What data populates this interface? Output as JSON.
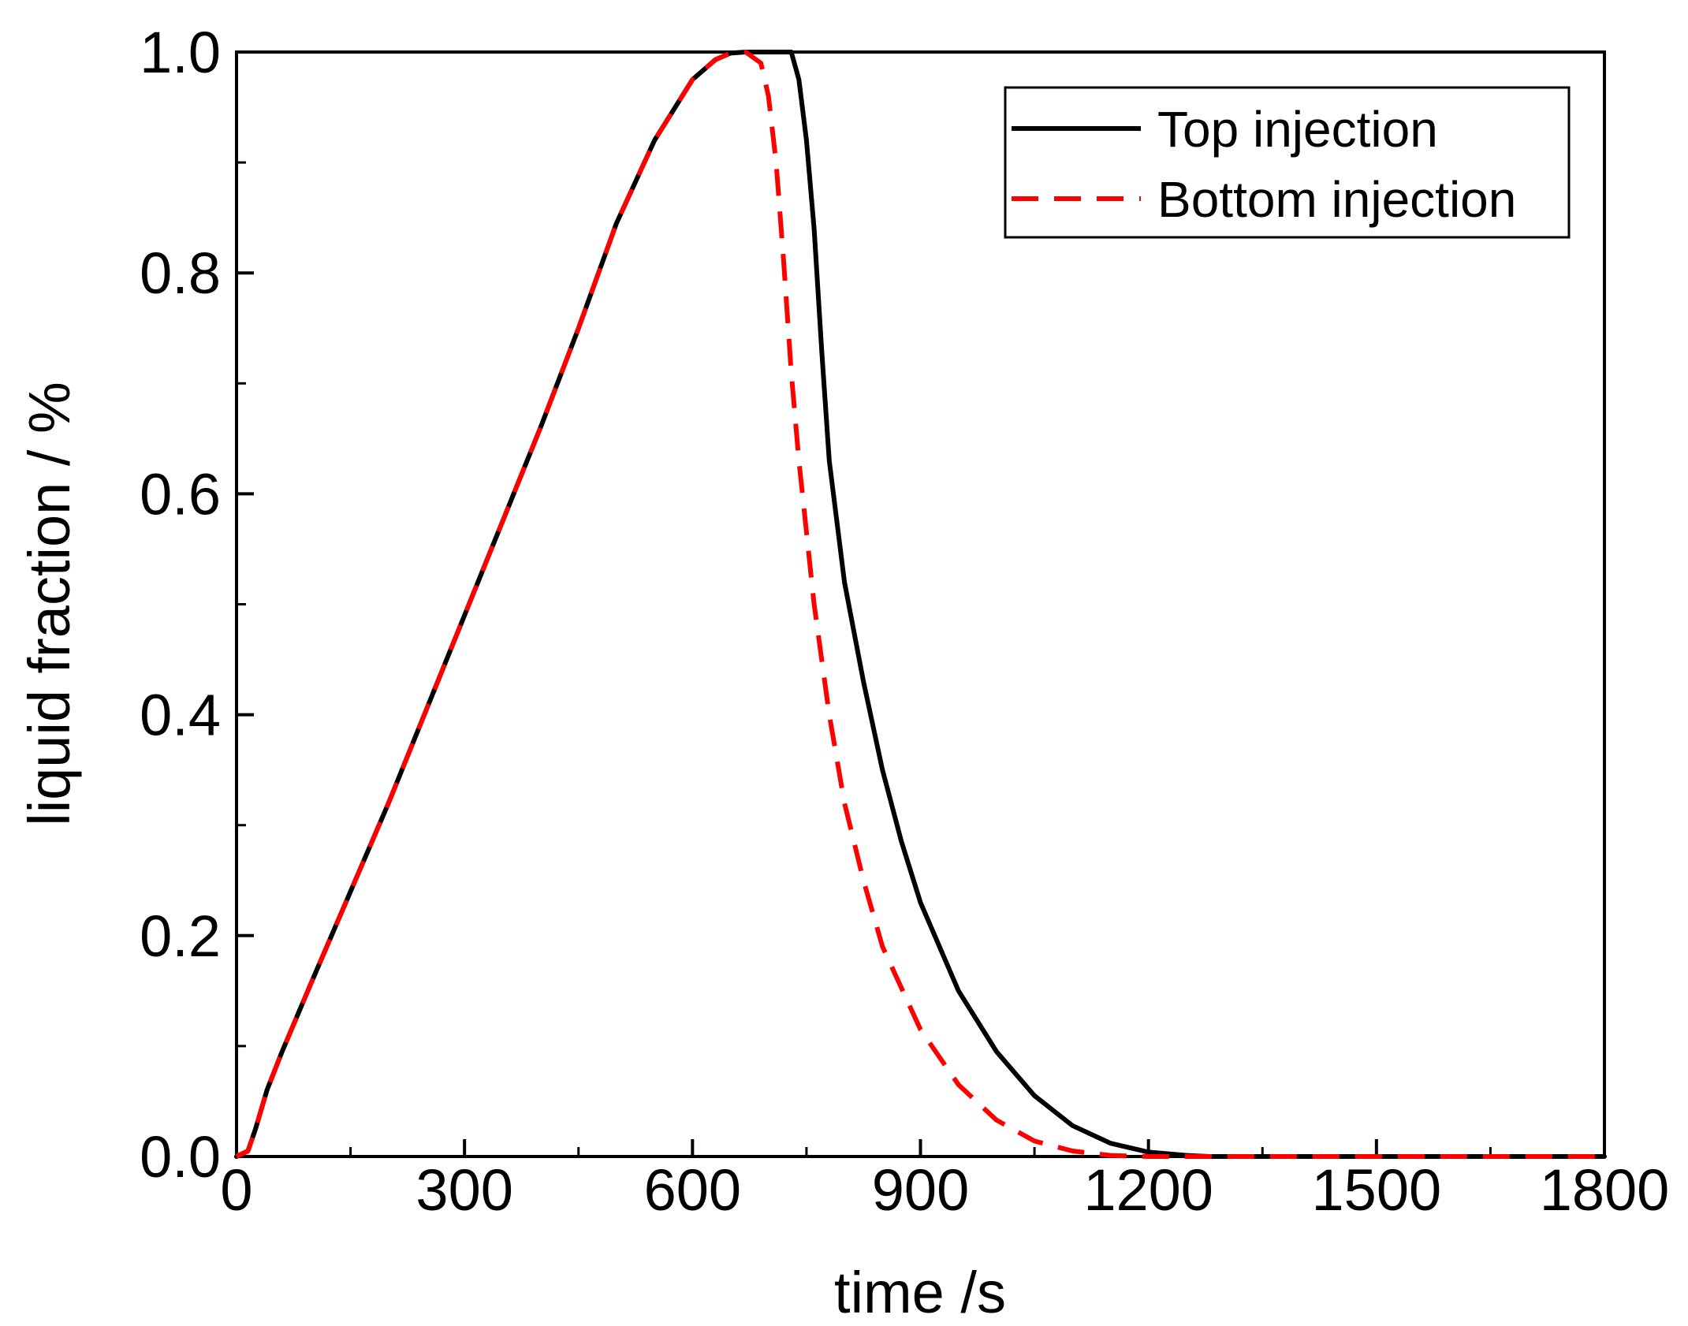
{
  "chart_data": {
    "type": "line",
    "title": "",
    "xlabel": "time /s",
    "ylabel": "liquid fraction / %",
    "xlim": [
      0,
      1800
    ],
    "ylim": [
      0.0,
      1.0
    ],
    "x_ticks": [
      0,
      300,
      600,
      900,
      1200,
      1500,
      1800
    ],
    "x_tick_labels": [
      "0",
      "300",
      "600",
      "900",
      "1200",
      "1500",
      "1800"
    ],
    "y_ticks": [
      0.0,
      0.2,
      0.4,
      0.6,
      0.8,
      1.0
    ],
    "y_tick_labels": [
      "0.0",
      "0.2",
      "0.4",
      "0.6",
      "0.8",
      "1.0"
    ],
    "grid": false,
    "legend_position": "top-right",
    "series": [
      {
        "name": "Top injection",
        "color": "#000000",
        "dash": "solid",
        "x": [
          0,
          15,
          25,
          40,
          60,
          100,
          150,
          200,
          250,
          300,
          350,
          400,
          450,
          500,
          550,
          600,
          630,
          650,
          670,
          700,
          720,
          730,
          740,
          750,
          760,
          770,
          780,
          800,
          825,
          850,
          875,
          900,
          950,
          1000,
          1050,
          1100,
          1150,
          1200,
          1250,
          1280,
          1300,
          1500,
          1800
        ],
        "y": [
          0.0,
          0.005,
          0.025,
          0.06,
          0.095,
          0.16,
          0.24,
          0.32,
          0.405,
          0.49,
          0.575,
          0.66,
          0.75,
          0.845,
          0.92,
          0.975,
          0.993,
          0.999,
          1.0,
          1.0,
          1.0,
          1.0,
          0.975,
          0.92,
          0.84,
          0.73,
          0.63,
          0.52,
          0.43,
          0.35,
          0.285,
          0.23,
          0.15,
          0.095,
          0.055,
          0.028,
          0.012,
          0.004,
          0.001,
          0.0,
          0.0,
          0.0,
          0.0
        ]
      },
      {
        "name": "Bottom injection",
        "color": "#ff0000",
        "dash": "dashed",
        "x": [
          0,
          15,
          25,
          40,
          60,
          100,
          150,
          200,
          250,
          300,
          350,
          400,
          450,
          500,
          550,
          600,
          630,
          650,
          670,
          690,
          700,
          710,
          720,
          730,
          740,
          760,
          780,
          800,
          825,
          850,
          900,
          950,
          1000,
          1050,
          1100,
          1150,
          1200,
          1250,
          1300,
          1500,
          1800
        ],
        "y": [
          0.0,
          0.005,
          0.025,
          0.06,
          0.095,
          0.16,
          0.24,
          0.32,
          0.405,
          0.49,
          0.575,
          0.66,
          0.75,
          0.845,
          0.92,
          0.975,
          0.993,
          0.999,
          1.0,
          0.99,
          0.96,
          0.9,
          0.81,
          0.71,
          0.63,
          0.5,
          0.4,
          0.32,
          0.25,
          0.19,
          0.115,
          0.065,
          0.033,
          0.014,
          0.005,
          0.001,
          0.0,
          0.0,
          0.0,
          0.0,
          0.0
        ]
      }
    ]
  }
}
